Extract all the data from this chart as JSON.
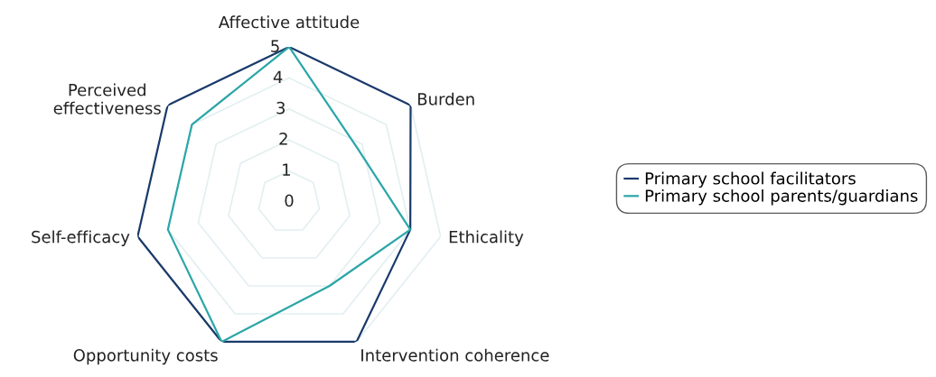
{
  "chart_data": {
    "type": "radar",
    "categories": [
      "Affective attitude",
      "Burden",
      "Ethicality",
      "Intervention coherence",
      "Opportunity costs",
      "Self-efficacy",
      "Perceived effectiveness"
    ],
    "series": [
      {
        "name": "Primary school facilitators",
        "color": "#1b3a6b",
        "values": [
          5,
          5,
          4,
          5,
          5,
          5,
          5
        ]
      },
      {
        "name": "Primary school parents/guardians",
        "color": "#2ba6a8",
        "values": [
          5,
          2.8,
          4,
          3,
          5,
          4,
          4
        ]
      }
    ],
    "ylim": [
      0,
      5
    ],
    "yticks": [
      0,
      1,
      2,
      3,
      4,
      5
    ],
    "grid": true,
    "legend": "right",
    "marker": "none",
    "line_style": "solid"
  }
}
